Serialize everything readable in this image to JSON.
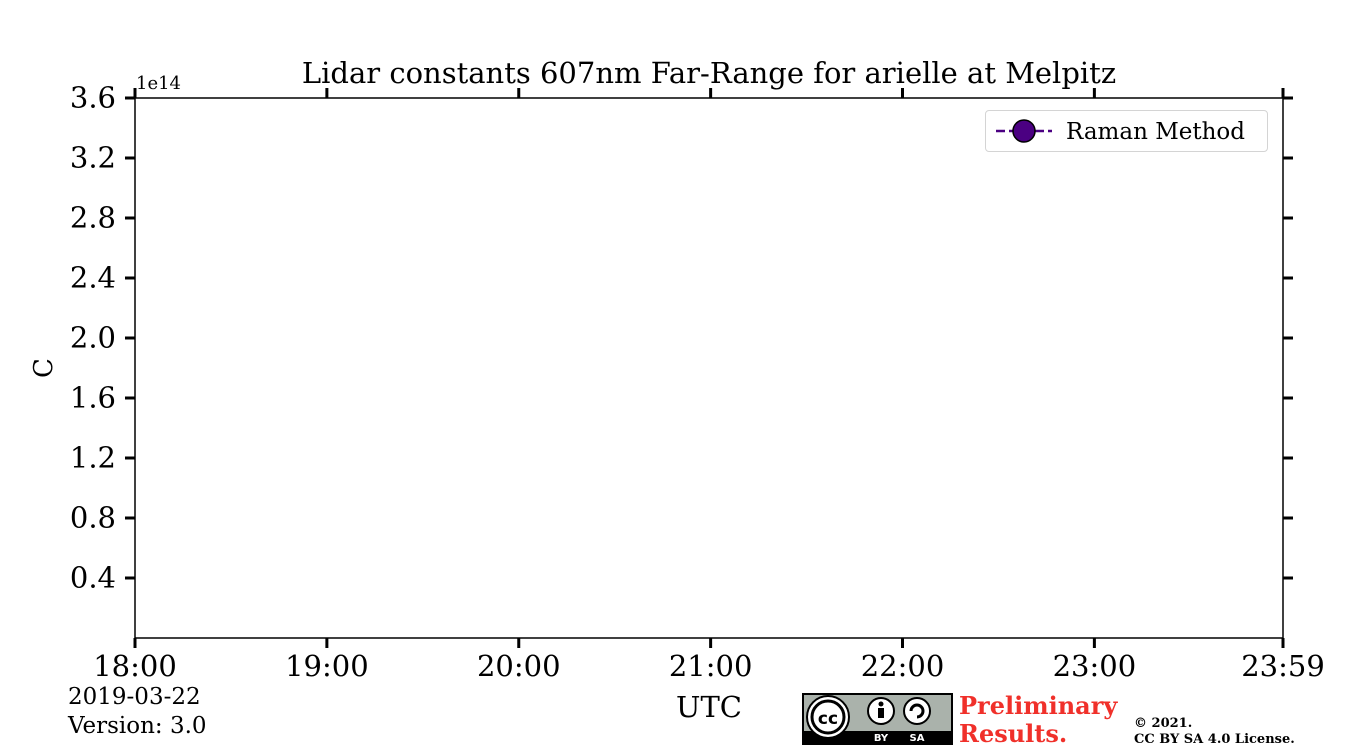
{
  "chart_data": {
    "type": "line",
    "title": "Lidar constants 607nm Far-Range for arielle at Melpitz",
    "xlabel": "UTC",
    "ylabel": "C",
    "y_offset_label": "1e14",
    "x_tick_labels": [
      "18:00",
      "19:00",
      "20:00",
      "21:00",
      "22:00",
      "23:00",
      "23:59"
    ],
    "x_tick_hours": [
      0,
      1,
      2,
      3,
      4,
      5,
      5.983
    ],
    "xlim_hours": [
      0,
      5.983
    ],
    "y_tick_values": [
      0.4,
      0.8,
      1.2,
      1.6,
      2.0,
      2.4,
      2.8,
      3.2,
      3.6
    ],
    "y_tick_labels": [
      "0.4",
      "0.8",
      "1.2",
      "1.6",
      "2.0",
      "2.4",
      "2.8",
      "3.2",
      "3.6"
    ],
    "ylim": [
      0.0,
      3.6
    ],
    "grid": false,
    "legend_position": "top-right",
    "series": [
      {
        "name": "Raman Method",
        "color": "#4b0082",
        "marker": "circle",
        "linestyle": "dashed",
        "x": [],
        "y": []
      }
    ]
  },
  "footer": {
    "date": "2019-03-22",
    "version": "Version: 3.0",
    "cc_text": "cc",
    "cc_by": "BY",
    "cc_sa": "SA",
    "preliminary_line1": "Preliminary",
    "preliminary_line2": "Results.",
    "copyright_line1": "©  2021.",
    "copyright_line2": "CC BY SA 4.0 License."
  },
  "colors": {
    "preliminary": "#f0302a",
    "legend_marker": "#4b0082",
    "cc_badge": "#aab2ab"
  }
}
